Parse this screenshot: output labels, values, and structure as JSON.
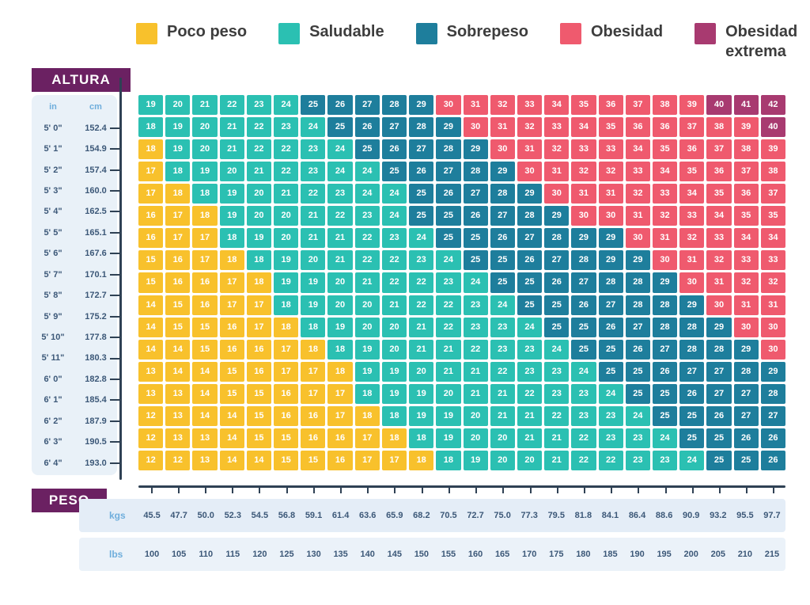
{
  "legend": {
    "items": [
      {
        "label": "Poco peso",
        "color": "#F8C12C",
        "key": "u"
      },
      {
        "label": "Saludable",
        "color": "#2BC0B2",
        "key": "h"
      },
      {
        "label": "Sobrepeso",
        "color": "#1E7E9C",
        "key": "o"
      },
      {
        "label": "Obesidad",
        "color": "#EF5A6E",
        "key": "b"
      },
      {
        "label": "Obesidad extrema",
        "color": "#A83A70",
        "key": "e"
      }
    ]
  },
  "altura": {
    "title": "ALTURA",
    "unit_in": "in",
    "unit_cm": "cm"
  },
  "peso": {
    "title": "PESO",
    "kgs_label": "kgs",
    "lbs_label": "lbs"
  },
  "colors": {
    "badge": "#6B2162",
    "axis": "#2F4154",
    "panel": "#E9F1F8",
    "value_text": "#3C5878",
    "unit_text": "#6FAEDC",
    "legend_text": "#3d3d3d"
  },
  "chart_data": {
    "type": "heatmap",
    "title": "",
    "legend_position": "top",
    "x_axis": {
      "units": [
        "kgs",
        "lbs"
      ],
      "weights_kgs": [
        "45.5",
        "47.7",
        "50.0",
        "52.3",
        "54.5",
        "56.8",
        "59.1",
        "61.4",
        "63.6",
        "65.9",
        "68.2",
        "70.5",
        "72.7",
        "75.0",
        "77.3",
        "79.5",
        "81.8",
        "84.1",
        "86.4",
        "88.6",
        "90.9",
        "93.2",
        "95.5",
        "97.7"
      ],
      "weights_lbs": [
        "100",
        "105",
        "110",
        "115",
        "120",
        "125",
        "130",
        "135",
        "140",
        "145",
        "150",
        "155",
        "160",
        "165",
        "170",
        "175",
        "180",
        "185",
        "190",
        "195",
        "200",
        "205",
        "210",
        "215"
      ]
    },
    "y_axis": {
      "label": "ALTURA",
      "units": [
        "in",
        "cm"
      ]
    },
    "category_key": {
      "u": "Poco peso",
      "h": "Saludable",
      "o": "Sobrepeso",
      "b": "Obesidad",
      "e": "Obesidad extrema"
    },
    "rows": [
      {
        "in": "5' 0\"",
        "cm": "152.4",
        "values": [
          19,
          20,
          21,
          22,
          23,
          24,
          25,
          26,
          27,
          28,
          29,
          30,
          31,
          32,
          33,
          34,
          35,
          36,
          37,
          38,
          39,
          40,
          41,
          42
        ],
        "cats": "hhhhhhooooobbbbbbbbbbeee"
      },
      {
        "in": "5' 1\"",
        "cm": "154.9",
        "values": [
          18,
          19,
          20,
          21,
          22,
          23,
          24,
          25,
          26,
          27,
          28,
          29,
          30,
          31,
          32,
          33,
          34,
          35,
          36,
          36,
          37,
          38,
          39,
          40
        ],
        "cats": "hhhhhhhooooobbbbbbbbbbbe"
      },
      {
        "in": "5' 2\"",
        "cm": "157.4",
        "values": [
          18,
          19,
          20,
          21,
          22,
          22,
          23,
          24,
          25,
          26,
          27,
          28,
          29,
          30,
          31,
          32,
          33,
          33,
          34,
          35,
          36,
          37,
          38,
          39
        ],
        "cats": "uhhhhhhhooooobbbbbbbbbbb"
      },
      {
        "in": "5' 3\"",
        "cm": "160.0",
        "values": [
          17,
          18,
          19,
          20,
          21,
          22,
          23,
          24,
          24,
          25,
          26,
          27,
          28,
          29,
          30,
          31,
          32,
          32,
          33,
          34,
          35,
          36,
          37,
          38
        ],
        "cats": "uhhhhhhhhooooobbbbbbbbbb"
      },
      {
        "in": "5' 4\"",
        "cm": "162.5",
        "values": [
          17,
          18,
          18,
          19,
          20,
          21,
          22,
          23,
          24,
          24,
          25,
          26,
          27,
          28,
          29,
          30,
          31,
          31,
          32,
          33,
          34,
          35,
          36,
          37
        ],
        "cats": "uuhhhhhhhhooooobbbbbbbbb"
      },
      {
        "in": "5' 5\"",
        "cm": "165.1",
        "values": [
          16,
          17,
          18,
          19,
          20,
          20,
          21,
          22,
          23,
          24,
          25,
          25,
          26,
          27,
          28,
          29,
          30,
          30,
          31,
          32,
          33,
          34,
          35,
          35
        ],
        "cats": "uuuhhhhhhhoooooobbbbbbbb"
      },
      {
        "in": "5' 6\"",
        "cm": "167.6",
        "values": [
          16,
          17,
          17,
          18,
          19,
          20,
          21,
          21,
          22,
          23,
          24,
          25,
          25,
          26,
          27,
          28,
          29,
          29,
          30,
          31,
          32,
          33,
          34,
          34
        ],
        "cats": "uuuhhhhhhhhooooooobbbbbb"
      },
      {
        "in": "5' 7\"",
        "cm": "170.1",
        "values": [
          15,
          16,
          17,
          18,
          18,
          19,
          20,
          21,
          22,
          22,
          23,
          24,
          25,
          25,
          26,
          27,
          28,
          29,
          29,
          30,
          31,
          32,
          33,
          33
        ],
        "cats": "uuuuhhhhhhhhooooooobbbbb"
      },
      {
        "in": "5' 8\"",
        "cm": "172.7",
        "values": [
          15,
          16,
          16,
          17,
          18,
          19,
          19,
          20,
          21,
          22,
          22,
          23,
          24,
          25,
          25,
          26,
          27,
          28,
          28,
          29,
          30,
          31,
          32,
          32
        ],
        "cats": "uuuuuhhhhhhhhooooooobbbb"
      },
      {
        "in": "5' 9\"",
        "cm": "175.2",
        "values": [
          14,
          15,
          16,
          17,
          17,
          18,
          19,
          20,
          20,
          21,
          22,
          22,
          23,
          24,
          25,
          25,
          26,
          27,
          28,
          28,
          29,
          30,
          31,
          31
        ],
        "cats": "uuuuuhhhhhhhhhooooooobbb"
      },
      {
        "in": "5' 10\"",
        "cm": "177.8",
        "values": [
          14,
          15,
          15,
          16,
          17,
          18,
          18,
          19,
          20,
          20,
          21,
          22,
          23,
          23,
          24,
          25,
          25,
          26,
          27,
          28,
          28,
          29,
          30,
          30
        ],
        "cats": "uuuuuuhhhhhhhhhooooooobb"
      },
      {
        "in": "5' 11\"",
        "cm": "180.3",
        "values": [
          14,
          14,
          15,
          16,
          16,
          17,
          18,
          18,
          19,
          20,
          21,
          21,
          22,
          23,
          23,
          24,
          25,
          25,
          26,
          27,
          28,
          28,
          29,
          30
        ],
        "cats": "uuuuuuuhhhhhhhhhooooooob"
      },
      {
        "in": "6' 0\"",
        "cm": "182.8",
        "values": [
          13,
          14,
          14,
          15,
          16,
          17,
          17,
          18,
          19,
          19,
          20,
          21,
          21,
          22,
          23,
          23,
          24,
          25,
          25,
          26,
          27,
          27,
          28,
          29
        ],
        "cats": "uuuuuuuuhhhhhhhhhooooooo"
      },
      {
        "in": "6' 1\"",
        "cm": "185.4",
        "values": [
          13,
          13,
          14,
          15,
          15,
          16,
          17,
          17,
          18,
          19,
          19,
          20,
          21,
          21,
          22,
          23,
          23,
          24,
          25,
          25,
          26,
          27,
          27,
          28
        ],
        "cats": "uuuuuuuuhhhhhhhhhhoooooo"
      },
      {
        "in": "6' 2\"",
        "cm": "187.9",
        "values": [
          12,
          13,
          14,
          14,
          15,
          16,
          16,
          17,
          18,
          18,
          19,
          19,
          20,
          21,
          21,
          22,
          23,
          23,
          24,
          25,
          25,
          26,
          27,
          27
        ],
        "cats": "uuuuuuuuuhhhhhhhhhhooooo"
      },
      {
        "in": "6' 3\"",
        "cm": "190.5",
        "values": [
          12,
          13,
          13,
          14,
          15,
          15,
          16,
          16,
          17,
          18,
          18,
          19,
          20,
          20,
          21,
          21,
          22,
          23,
          23,
          24,
          25,
          25,
          26,
          26
        ],
        "cats": "uuuuuuuuuuhhhhhhhhhhoooo"
      },
      {
        "in": "6' 4\"",
        "cm": "193.0",
        "values": [
          12,
          12,
          13,
          14,
          14,
          15,
          15,
          16,
          17,
          17,
          18,
          18,
          19,
          20,
          20,
          21,
          22,
          22,
          23,
          23,
          24,
          25,
          25,
          26
        ],
        "cats": "uuuuuuuuuuuhhhhhhhhhhooo"
      }
    ]
  }
}
